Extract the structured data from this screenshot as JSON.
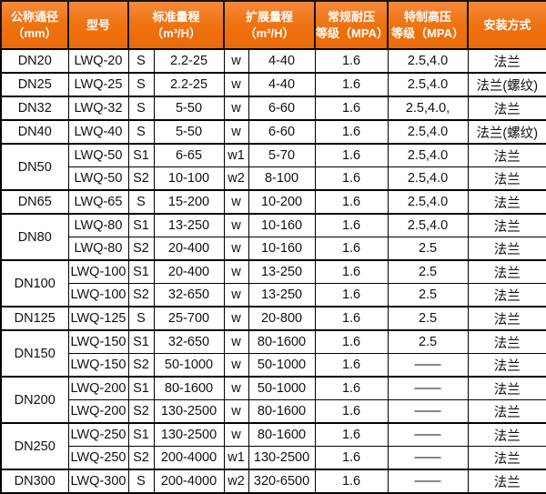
{
  "colors": {
    "header_bg_top": "#f78a3d",
    "header_bg_bottom": "#ea6a06",
    "header_text": "#ffffff",
    "border": "#000000",
    "cell_text": "#111111",
    "cell_bg": "#ffffff"
  },
  "chart_data": {
    "type": "table",
    "header": {
      "cells": [
        {
          "label": "公称通径\n（mm）",
          "colspan": 1
        },
        {
          "label": "型号",
          "colspan": 1
        },
        {
          "label": "标准量程\n（m³/H）",
          "colspan": 2
        },
        {
          "label": "扩展量程\n（m³/H）",
          "colspan": 2
        },
        {
          "label": "常规耐压\n等级（MPA）",
          "colspan": 1
        },
        {
          "label": "特制高压\n等级（MPA）",
          "colspan": 1
        },
        {
          "label": "安装方式",
          "colspan": 1
        }
      ]
    },
    "groups": [
      {
        "dn": "DN20",
        "rows": [
          {
            "model": "LWQ-20",
            "s": "S",
            "standard": "2.2-25",
            "w": "w",
            "extended": "4-40",
            "pressure": "1.6",
            "high": "2.5,4.0",
            "install": "法兰"
          }
        ]
      },
      {
        "dn": "DN25",
        "rows": [
          {
            "model": "LWQ-25",
            "s": "S",
            "standard": "2.2-25",
            "w": "w",
            "extended": "4-40",
            "pressure": "1.6",
            "high": "2.5,4.0",
            "install": "法兰(螺纹)"
          }
        ]
      },
      {
        "dn": "DN32",
        "rows": [
          {
            "model": "LWQ-32",
            "s": "S",
            "standard": "5-50",
            "w": "w",
            "extended": "6-60",
            "pressure": "1.6",
            "high": "2.5,4.0,",
            "install": "法兰"
          }
        ]
      },
      {
        "dn": "DN40",
        "rows": [
          {
            "model": "LWQ-40",
            "s": "S",
            "standard": "5-50",
            "w": "w",
            "extended": "6-60",
            "pressure": "1.6",
            "high": "2.5,4.0",
            "install": "法兰(螺纹)"
          }
        ]
      },
      {
        "dn": "DN50",
        "rows": [
          {
            "model": "LWQ-50",
            "s": "S1",
            "standard": "6-65",
            "w": "w1",
            "extended": "5-70",
            "pressure": "1.6",
            "high": "2.5,4.0",
            "install": "法兰"
          },
          {
            "model": "LWQ-50",
            "s": "S2",
            "standard": "10-100",
            "w": "w2",
            "extended": "8-100",
            "pressure": "1.6",
            "high": "2.5,4.0",
            "install": "法兰"
          }
        ]
      },
      {
        "dn": "DN65",
        "rows": [
          {
            "model": "LWQ-65",
            "s": "S",
            "standard": "15-200",
            "w": "w",
            "extended": "10-200",
            "pressure": "1.6",
            "high": "2.5,4.0",
            "install": "法兰"
          }
        ]
      },
      {
        "dn": "DN80",
        "rows": [
          {
            "model": "LWQ-80",
            "s": "S1",
            "standard": "13-250",
            "w": "w",
            "extended": "10-160",
            "pressure": "1.6",
            "high": "2.5,4.0",
            "install": "法兰"
          },
          {
            "model": "LWQ-80",
            "s": "S2",
            "standard": "20-400",
            "w": "w",
            "extended": "10-160",
            "pressure": "1.6",
            "high": "2.5",
            "install": "法兰"
          }
        ]
      },
      {
        "dn": "DN100",
        "rows": [
          {
            "model": "LWQ-100",
            "s": "S1",
            "standard": "20-400",
            "w": "w",
            "extended": "13-250",
            "pressure": "1.6",
            "high": "2.5",
            "install": "法兰"
          },
          {
            "model": "LWQ-100",
            "s": "S2",
            "standard": "32-650",
            "w": "w",
            "extended": "13-250",
            "pressure": "1.6",
            "high": "2.5",
            "install": "法兰"
          }
        ]
      },
      {
        "dn": "DN125",
        "rows": [
          {
            "model": "LWQ-125",
            "s": "S",
            "standard": "25-700",
            "w": "w",
            "extended": "20-800",
            "pressure": "1.6",
            "high": "2.5",
            "install": "法兰"
          }
        ]
      },
      {
        "dn": "DN150",
        "rows": [
          {
            "model": "LWQ-150",
            "s": "S1",
            "standard": "32-650",
            "w": "w",
            "extended": "80-1600",
            "pressure": "1.6",
            "high": "2.5",
            "install": "法兰"
          },
          {
            "model": "LWQ-150",
            "s": "S2",
            "standard": "50-1000",
            "w": "w",
            "extended": "50-1000",
            "pressure": "1.6",
            "high": "——",
            "install": "法兰"
          }
        ]
      },
      {
        "dn": "DN200",
        "rows": [
          {
            "model": "LWQ-200",
            "s": "S1",
            "standard": "80-1600",
            "w": "w",
            "extended": "50-1000",
            "pressure": "1.6",
            "high": "——",
            "install": "法兰"
          },
          {
            "model": "LWQ-200",
            "s": "S2",
            "standard": "130-2500",
            "w": "w",
            "extended": "80-1600",
            "pressure": "1.6",
            "high": "——",
            "install": "法兰"
          }
        ]
      },
      {
        "dn": "DN250",
        "rows": [
          {
            "model": "LWQ-250",
            "s": "S1",
            "standard": "130-2500",
            "w": "w",
            "extended": "80-1600",
            "pressure": "1.6",
            "high": "——",
            "install": "法兰"
          },
          {
            "model": "LWQ-250",
            "s": "S2",
            "standard": "200-4000",
            "w": "w1",
            "extended": "130-2500",
            "pressure": "1.6",
            "high": "——",
            "install": "法兰"
          }
        ]
      },
      {
        "dn": "DN300",
        "rows": [
          {
            "model": "LWQ-300",
            "s": "S",
            "standard": "200-4000",
            "w": "w2",
            "extended": "320-6500",
            "pressure": "1.6",
            "high": "——",
            "install": "法兰"
          }
        ]
      }
    ]
  }
}
